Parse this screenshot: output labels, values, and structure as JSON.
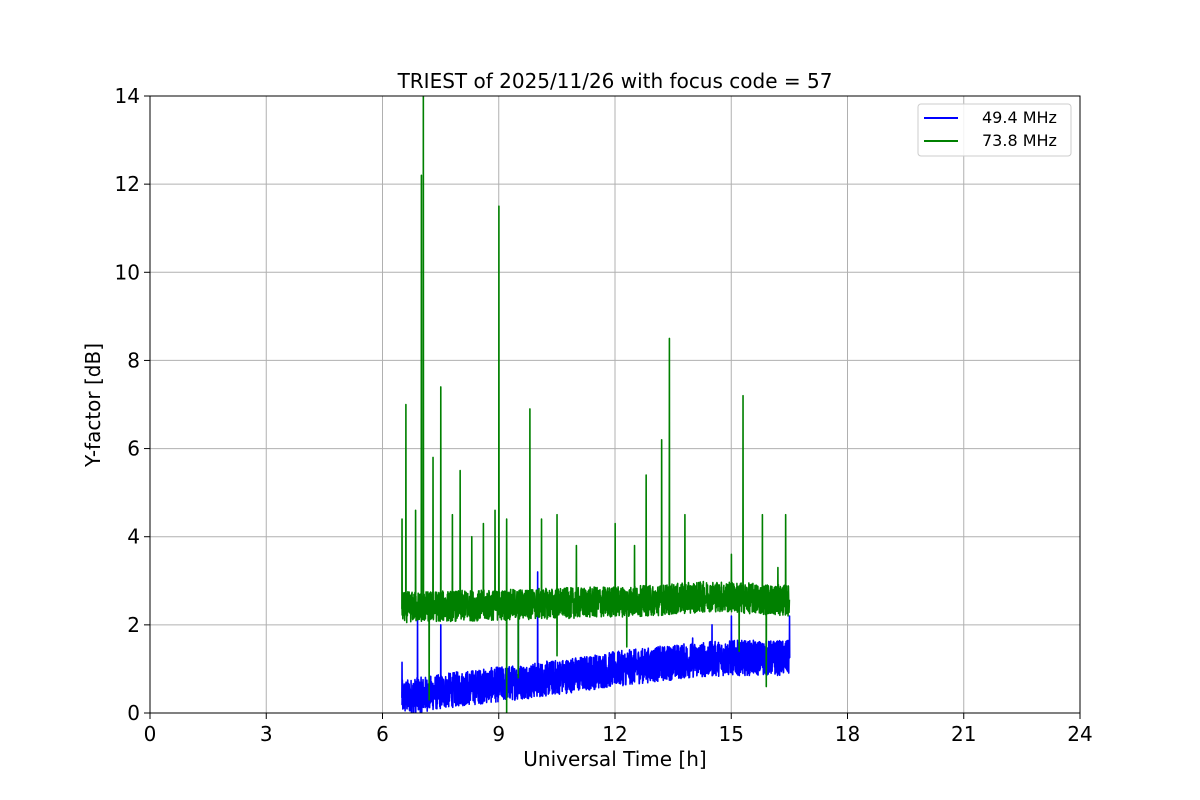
{
  "chart_data": {
    "type": "line",
    "title": "TRIEST of 2025/11/26 with focus code = 57",
    "xlabel": "Universal Time [h]",
    "ylabel": "Y-factor [dB]",
    "xlim": [
      0,
      24
    ],
    "ylim": [
      0,
      14
    ],
    "xticks": [
      0,
      3,
      6,
      9,
      12,
      15,
      18,
      21,
      24
    ],
    "yticks": [
      0,
      2,
      4,
      6,
      8,
      10,
      12,
      14
    ],
    "grid": true,
    "legend_position": "top-right",
    "series": [
      {
        "name": "49.4 MHz",
        "color": "#0000ff",
        "time_range": [
          6.5,
          16.5
        ],
        "baseline_points": [
          [
            6.5,
            0.35
          ],
          [
            8,
            0.55
          ],
          [
            10,
            0.75
          ],
          [
            12,
            1.0
          ],
          [
            14,
            1.2
          ],
          [
            15,
            1.25
          ],
          [
            16.5,
            1.25
          ]
        ],
        "noise_amplitude": 0.4,
        "spikes": [
          [
            6.5,
            1.15
          ],
          [
            6.9,
            2.3
          ],
          [
            7.5,
            2.0
          ],
          [
            9.5,
            2.6
          ],
          [
            10.0,
            3.2
          ],
          [
            14.0,
            1.7
          ],
          [
            14.5,
            2.0
          ],
          [
            15.0,
            2.2
          ],
          [
            16.5,
            2.2
          ]
        ]
      },
      {
        "name": "73.8 MHz",
        "color": "#008000",
        "time_range": [
          6.5,
          16.5
        ],
        "baseline_points": [
          [
            6.5,
            2.4
          ],
          [
            9,
            2.45
          ],
          [
            11,
            2.5
          ],
          [
            13,
            2.55
          ],
          [
            14.5,
            2.65
          ],
          [
            16.5,
            2.55
          ]
        ],
        "noise_amplitude": 0.35,
        "spikes": [
          [
            6.5,
            4.4
          ],
          [
            6.6,
            7.0
          ],
          [
            6.85,
            4.6
          ],
          [
            7.0,
            12.2
          ],
          [
            7.05,
            14.0
          ],
          [
            7.3,
            5.8
          ],
          [
            7.5,
            7.4
          ],
          [
            7.8,
            4.5
          ],
          [
            8.0,
            5.5
          ],
          [
            8.3,
            4.0
          ],
          [
            8.6,
            4.3
          ],
          [
            8.9,
            4.6
          ],
          [
            9.0,
            11.5
          ],
          [
            9.2,
            4.4
          ],
          [
            9.8,
            6.9
          ],
          [
            10.1,
            4.4
          ],
          [
            10.5,
            4.5
          ],
          [
            11.0,
            3.8
          ],
          [
            12.0,
            4.3
          ],
          [
            12.5,
            3.8
          ],
          [
            12.8,
            5.4
          ],
          [
            13.2,
            6.2
          ],
          [
            13.4,
            8.5
          ],
          [
            13.8,
            4.5
          ],
          [
            15.0,
            3.6
          ],
          [
            15.3,
            7.2
          ],
          [
            15.8,
            4.5
          ],
          [
            16.2,
            3.3
          ],
          [
            16.4,
            4.5
          ]
        ],
        "dips": [
          [
            7.2,
            0.3
          ],
          [
            9.2,
            0.0
          ],
          [
            9.5,
            0.8
          ],
          [
            10.5,
            1.3
          ],
          [
            12.3,
            1.5
          ],
          [
            15.2,
            1.4
          ],
          [
            15.9,
            0.6
          ]
        ]
      }
    ]
  }
}
